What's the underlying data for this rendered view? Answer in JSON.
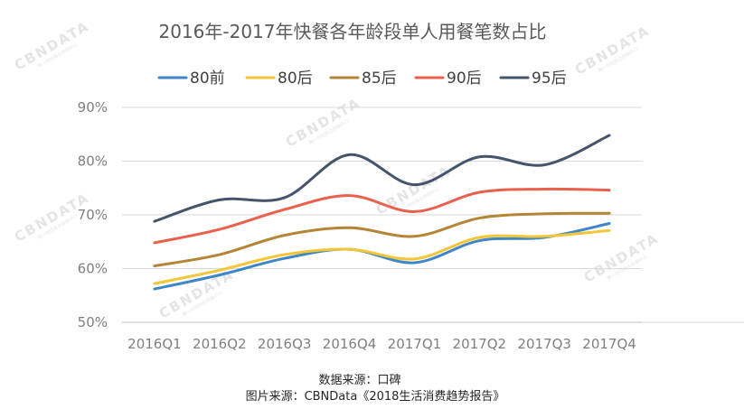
{
  "chart_data": {
    "type": "line",
    "title": "2016年-2017年快餐各年龄段单人用餐笔数占比",
    "categories": [
      "2016Q1",
      "2016Q2",
      "2016Q3",
      "2016Q4",
      "2017Q1",
      "2017Q2",
      "2017Q3",
      "2017Q4"
    ],
    "y_ticks": [
      "50%",
      "60%",
      "70%",
      "80%",
      "90%"
    ],
    "ylim": [
      50,
      90
    ],
    "unit": "%",
    "legend_position": "top",
    "grid": true,
    "series": [
      {
        "name": "80前",
        "color": "#3f86c8",
        "values": [
          56.2,
          58.8,
          61.9,
          63.6,
          61.1,
          65.2,
          65.8,
          68.4
        ]
      },
      {
        "name": "80后",
        "color": "#f2c637",
        "values": [
          57.2,
          59.7,
          62.6,
          63.6,
          61.8,
          65.8,
          66.0,
          67.1
        ]
      },
      {
        "name": "85后",
        "color": "#b38537",
        "values": [
          60.5,
          62.6,
          66.2,
          67.6,
          66.0,
          69.4,
          70.2,
          70.3
        ]
      },
      {
        "name": "90后",
        "color": "#e9604f",
        "values": [
          64.8,
          67.3,
          71.0,
          73.6,
          70.6,
          74.2,
          74.8,
          74.6
        ]
      },
      {
        "name": "95后",
        "color": "#44546a",
        "values": [
          68.8,
          72.8,
          73.2,
          81.2,
          75.6,
          80.8,
          79.3,
          84.8
        ]
      }
    ]
  },
  "source": {
    "data_source": "数据来源：口碑",
    "image_source": "图片来源：CBNData《2018生活消费趋势报告》"
  },
  "watermark": {
    "logo": "CBNDATA",
    "sub": "第一财经商业数据中心"
  }
}
